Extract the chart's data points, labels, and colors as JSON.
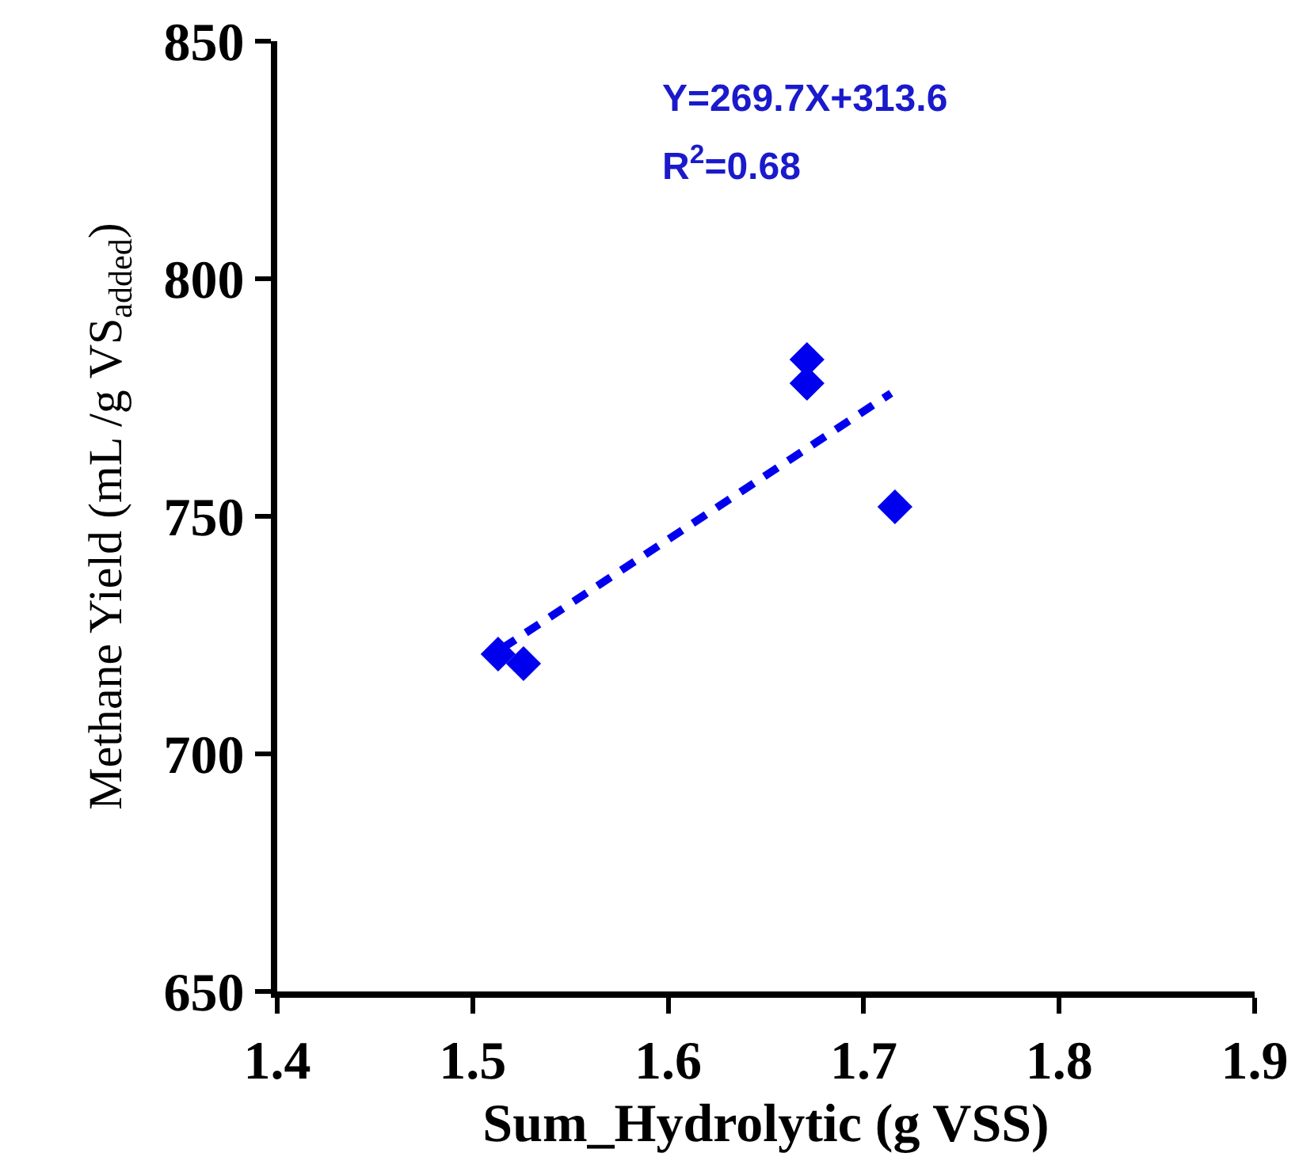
{
  "chart_data": {
    "type": "scatter",
    "xlabel": "Sum_Hydrolytic (g VSS)",
    "ylabel": "Methane Yield (mL /g VS$_{added}$)",
    "annotations": [
      "Y=269.7X+313.6",
      "R$^{2}$=0.68"
    ],
    "series": [
      {
        "color": "#0000ee",
        "marker": "diamond",
        "x": [
          1.513,
          1.526,
          1.671,
          1.671,
          1.716
        ],
        "values": [
          721,
          719,
          783,
          778,
          752
        ]
      },
      {
        "type": "line",
        "color": "#0000ee",
        "line_style": "dashed",
        "marker": "none",
        "x": [
          1.515,
          1.714
        ],
        "values": [
          722.2,
          775.9
        ]
      }
    ],
    "xlim": [
      1.4,
      1.9
    ],
    "xticks": [
      1.4,
      1.5,
      1.6,
      1.7,
      1.8,
      1.9
    ],
    "ylim": [
      650,
      850
    ],
    "yticks": [
      650,
      700,
      750,
      800,
      850
    ],
    "grid": false,
    "legend": false
  }
}
